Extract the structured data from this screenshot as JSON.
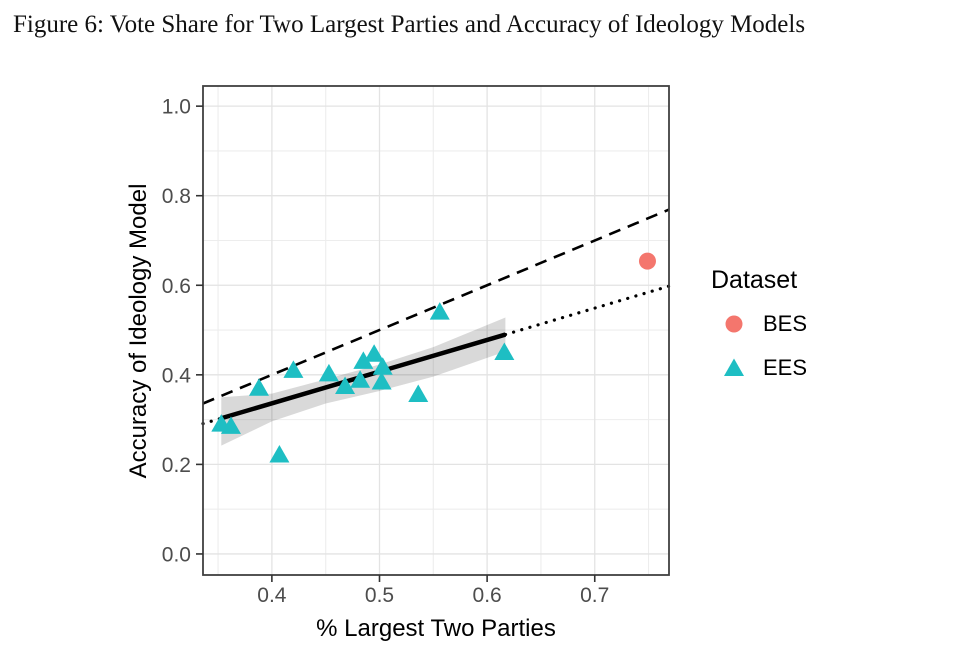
{
  "figure": {
    "title": "Figure 6: Vote Share for Two Largest Parties and Accuracy of Ideology Models"
  },
  "chart_data": {
    "type": "scatter",
    "title": "",
    "xlabel": "% Largest Two Parties",
    "ylabel": "Accuracy of Ideology Model",
    "xlim": [
      0.336,
      0.769
    ],
    "ylim": [
      -0.047,
      1.045
    ],
    "grid": true,
    "x_ticks": {
      "values": [
        0.4,
        0.5,
        0.6,
        0.7
      ],
      "labels": [
        "0.4",
        "0.5",
        "0.6",
        "0.7"
      ],
      "minor": [
        0.35,
        0.45,
        0.55,
        0.65,
        0.75
      ]
    },
    "y_ticks": {
      "values": [
        0.0,
        0.2,
        0.4,
        0.6,
        0.8,
        1.0
      ],
      "labels": [
        "0.0",
        "0.2",
        "0.4",
        "0.6",
        "0.8",
        "1.0"
      ],
      "minor": [
        0.1,
        0.3,
        0.5,
        0.7,
        0.9
      ]
    },
    "legend": {
      "title": "Dataset",
      "position": "right",
      "items": [
        {
          "label": "BES",
          "marker": "circle",
          "color": "#F4766D"
        },
        {
          "label": "EES",
          "marker": "triangle",
          "color": "#1EBEC3"
        }
      ]
    },
    "series": [
      {
        "name": "BES",
        "marker": "circle",
        "color": "#F4766D",
        "points": [
          [
            0.749,
            0.654
          ]
        ]
      },
      {
        "name": "EES",
        "marker": "triangle",
        "color": "#1EBEC3",
        "points": [
          [
            0.353,
            0.29
          ],
          [
            0.362,
            0.285
          ],
          [
            0.388,
            0.37
          ],
          [
            0.407,
            0.221
          ],
          [
            0.42,
            0.41
          ],
          [
            0.453,
            0.402
          ],
          [
            0.468,
            0.374
          ],
          [
            0.482,
            0.388
          ],
          [
            0.485,
            0.43
          ],
          [
            0.495,
            0.446
          ],
          [
            0.502,
            0.384
          ],
          [
            0.503,
            0.417
          ],
          [
            0.536,
            0.356
          ],
          [
            0.556,
            0.54
          ],
          [
            0.616,
            0.45
          ]
        ]
      }
    ],
    "lines": [
      {
        "name": "identity-line",
        "style": "dashed",
        "color": "#000000",
        "x1": 0.336,
        "y1": 0.336,
        "x2": 0.769,
        "y2": 0.769
      },
      {
        "name": "fit-extension-left",
        "style": "dotted",
        "color": "#000000",
        "x1": 0.336,
        "y1": 0.291,
        "x2": 0.353,
        "y2": 0.303
      },
      {
        "name": "fit-line",
        "style": "solid",
        "color": "#000000",
        "x1": 0.353,
        "y1": 0.303,
        "x2": 0.617,
        "y2": 0.49
      },
      {
        "name": "fit-extension-right",
        "style": "dotted",
        "color": "#000000",
        "x1": 0.617,
        "y1": 0.49,
        "x2": 0.769,
        "y2": 0.598
      }
    ],
    "confidence_band": {
      "color": "#000000",
      "opacity": 0.15,
      "upper": [
        [
          0.353,
          0.35
        ],
        [
          0.4,
          0.358
        ],
        [
          0.45,
          0.39
        ],
        [
          0.5,
          0.423
        ],
        [
          0.55,
          0.462
        ],
        [
          0.617,
          0.528
        ]
      ],
      "lower": [
        [
          0.353,
          0.242
        ],
        [
          0.4,
          0.296
        ],
        [
          0.45,
          0.336
        ],
        [
          0.5,
          0.364
        ],
        [
          0.55,
          0.396
        ],
        [
          0.617,
          0.452
        ]
      ]
    },
    "style": {
      "panel_border_color": "#404040",
      "grid_major_color": "#E3E3E3",
      "grid_minor_color": "#EDEDED",
      "tick_color": "#333333",
      "tick_label_color": "#4D4D4D"
    }
  }
}
